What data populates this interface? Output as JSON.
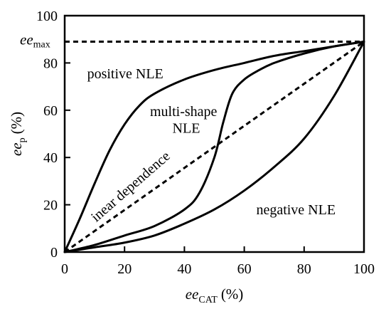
{
  "chart_data": {
    "type": "line",
    "title": "",
    "xlabel": {
      "main": "ee",
      "sub": "CAT",
      "unit": "(%)"
    },
    "ylabel": {
      "main": "ee",
      "sub": "p",
      "unit": "(%)"
    },
    "xlim": [
      0,
      100
    ],
    "ylim": [
      0,
      100
    ],
    "xticks": [
      0,
      20,
      40,
      60,
      80,
      100
    ],
    "yticks": [
      0,
      20,
      40,
      60,
      80,
      100
    ],
    "grid": false,
    "ee_max": {
      "value": 89,
      "label_main": "ee",
      "label_sub": "max"
    },
    "series": [
      {
        "key": "positive",
        "style": "solid",
        "x": [
          0,
          5,
          10,
          15,
          20,
          25,
          30,
          40,
          50,
          60,
          70,
          80,
          90,
          100
        ],
        "y": [
          0,
          14,
          29,
          43,
          54,
          62,
          67,
          73,
          77,
          80,
          83,
          85,
          87,
          89
        ]
      },
      {
        "key": "multi-shape",
        "style": "solid",
        "x": [
          0,
          10,
          20,
          30,
          40,
          45,
          50,
          53,
          56,
          60,
          65,
          70,
          80,
          90,
          100
        ],
        "y": [
          0,
          3,
          7,
          11,
          18,
          25,
          40,
          55,
          67,
          73,
          77,
          80,
          84,
          87,
          89
        ]
      },
      {
        "key": "linear",
        "style": "dashed",
        "x": [
          0,
          100
        ],
        "y": [
          0,
          89
        ]
      },
      {
        "key": "negative",
        "style": "solid",
        "x": [
          0,
          10,
          20,
          30,
          40,
          50,
          60,
          70,
          80,
          90,
          100
        ],
        "y": [
          0,
          2,
          4,
          7,
          12,
          18,
          26,
          36,
          48,
          66,
          89
        ]
      }
    ],
    "annotations": [
      {
        "key": "positive",
        "text": "positive NLE",
        "x": 7.5,
        "y": 73.5,
        "rotate": 0
      },
      {
        "key": "multi-shape-1",
        "text": "multi-shape",
        "x": 28.5,
        "y": 57.5,
        "rotate": 0
      },
      {
        "key": "multi-shape-2",
        "text": "NLE",
        "x": 36,
        "y": 50.5,
        "rotate": 0
      },
      {
        "key": "linear",
        "text": "inear dependence",
        "x": 10.5,
        "y": 12.5,
        "rotate": -41
      },
      {
        "key": "negative",
        "text": "negative NLE",
        "x": 64,
        "y": 16,
        "rotate": 0
      }
    ]
  }
}
